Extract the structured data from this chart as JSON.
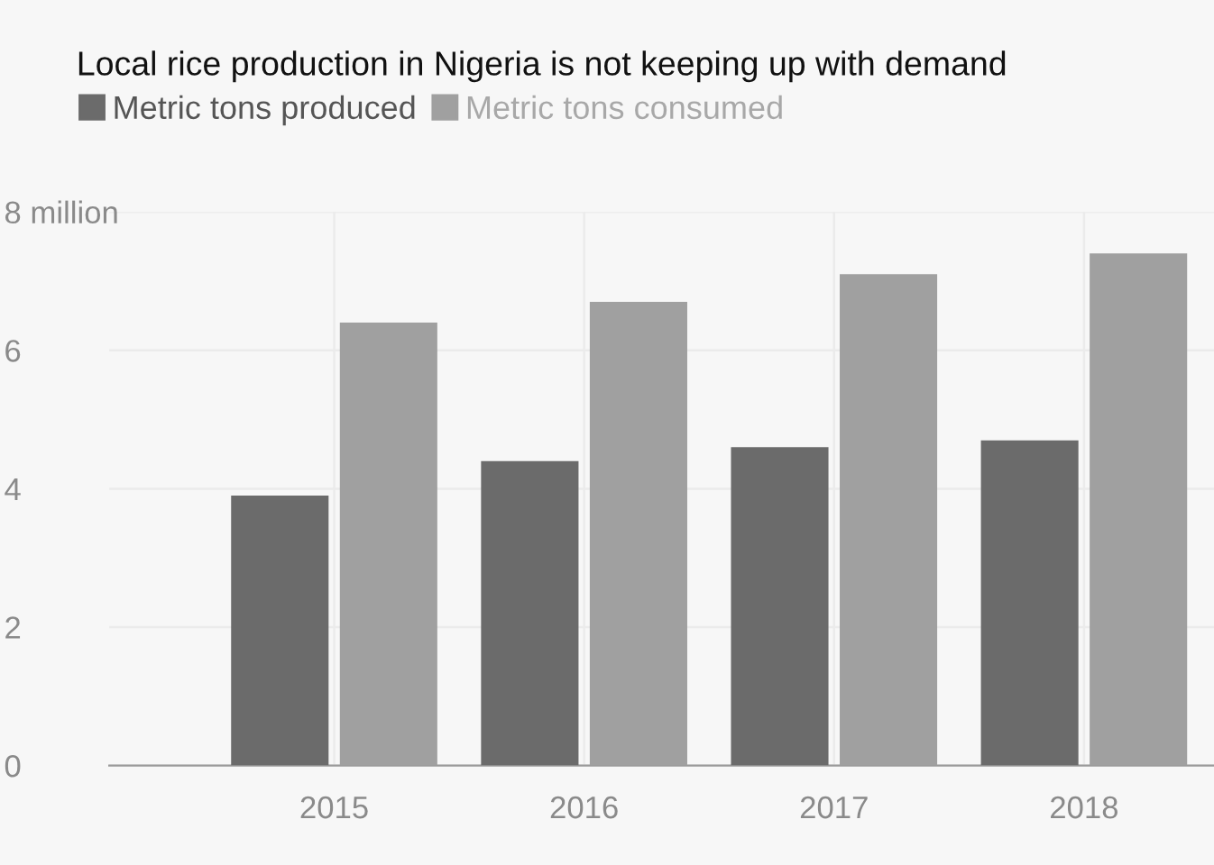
{
  "chart_data": {
    "type": "bar",
    "title": "Local rice production in Nigeria is not keeping up with demand",
    "categories": [
      "2015",
      "2016",
      "2017",
      "2018"
    ],
    "series": [
      {
        "name": "Metric tons produced",
        "color": "#6b6b6b",
        "values": [
          3.9,
          4.4,
          4.6,
          4.7
        ]
      },
      {
        "name": "Metric tons consumed",
        "color": "#a0a0a0",
        "values": [
          6.4,
          6.7,
          7.1,
          7.4
        ]
      }
    ],
    "ylim": [
      0,
      8
    ],
    "yticks": [
      0,
      2,
      4,
      6,
      {
        "value": 8,
        "label": "8 million"
      }
    ],
    "grid": true,
    "legend": "top left"
  }
}
